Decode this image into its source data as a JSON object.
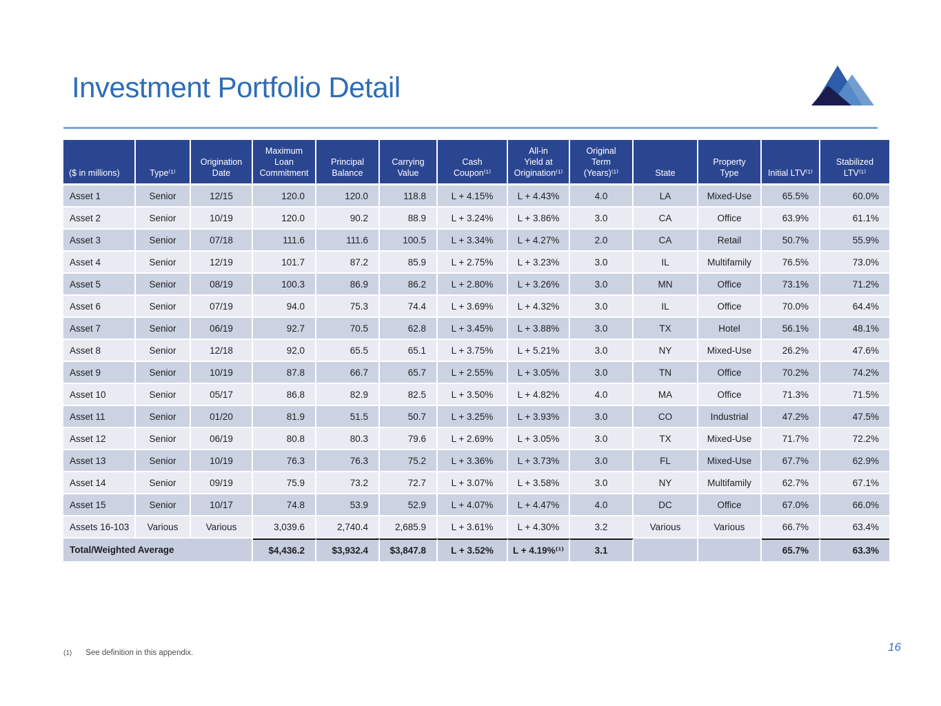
{
  "slide": {
    "title": "Investment Portfolio Detail",
    "page_number": "16",
    "footnote": {
      "marker": "(1)",
      "text": "See definition in this appendix."
    }
  },
  "colors": {
    "header_bg": "#2b4691",
    "row_odd": "#cbd2e2",
    "row_even": "#e9ebf3",
    "total_row": "#c7cedf",
    "title": "#2f6db6",
    "rule": "#7aa5d9",
    "page_number": "#3f6fc0",
    "logo_left_peak": "#2d5ca8",
    "logo_right_peak": "#5e90cb",
    "logo_dark": "#1b1c4e"
  },
  "table": {
    "headers": [
      "($ in millions)",
      "Type⁽¹⁾",
      "Origination\nDate",
      "Maximum\nLoan\nCommitment",
      "Principal\nBalance",
      "Carrying\nValue",
      "Cash\nCoupon⁽¹⁾",
      "All-in\nYield at\nOrigination⁽¹⁾",
      "Original\nTerm\n(Years)⁽¹⁾",
      "State",
      "Property\nType",
      "Initial LTV⁽¹⁾",
      "Stabilized\nLTV⁽¹⁾"
    ],
    "rows": [
      [
        "Asset 1",
        "Senior",
        "12/15",
        "120.0",
        "120.0",
        "118.8",
        "L + 4.15%",
        "L + 4.43%",
        "4.0",
        "LA",
        "Mixed-Use",
        "65.5%",
        "60.0%"
      ],
      [
        "Asset 2",
        "Senior",
        "10/19",
        "120.0",
        "90.2",
        "88.9",
        "L + 3.24%",
        "L + 3.86%",
        "3.0",
        "CA",
        "Office",
        "63.9%",
        "61.1%"
      ],
      [
        "Asset 3",
        "Senior",
        "07/18",
        "111.6",
        "111.6",
        "100.5",
        "L + 3.34%",
        "L + 4.27%",
        "2.0",
        "CA",
        "Retail",
        "50.7%",
        "55.9%"
      ],
      [
        "Asset 4",
        "Senior",
        "12/19",
        "101.7",
        "87.2",
        "85.9",
        "L + 2.75%",
        "L + 3.23%",
        "3.0",
        "IL",
        "Multifamily",
        "76.5%",
        "73.0%"
      ],
      [
        "Asset 5",
        "Senior",
        "08/19",
        "100.3",
        "86.9",
        "86.2",
        "L + 2.80%",
        "L + 3.26%",
        "3.0",
        "MN",
        "Office",
        "73.1%",
        "71.2%"
      ],
      [
        "Asset 6",
        "Senior",
        "07/19",
        "94.0",
        "75.3",
        "74.4",
        "L + 3.69%",
        "L + 4.32%",
        "3.0",
        "IL",
        "Office",
        "70.0%",
        "64.4%"
      ],
      [
        "Asset 7",
        "Senior",
        "06/19",
        "92.7",
        "70.5",
        "62.8",
        "L + 3.45%",
        "L + 3.88%",
        "3.0",
        "TX",
        "Hotel",
        "56.1%",
        "48.1%"
      ],
      [
        "Asset 8",
        "Senior",
        "12/18",
        "92.0",
        "65.5",
        "65.1",
        "L + 3.75%",
        "L + 5.21%",
        "3.0",
        "NY",
        "Mixed-Use",
        "26.2%",
        "47.6%"
      ],
      [
        "Asset 9",
        "Senior",
        "10/19",
        "87.8",
        "66.7",
        "65.7",
        "L + 2.55%",
        "L + 3.05%",
        "3.0",
        "TN",
        "Office",
        "70.2%",
        "74.2%"
      ],
      [
        "Asset 10",
        "Senior",
        "05/17",
        "86.8",
        "82.9",
        "82.5",
        "L + 3.50%",
        "L + 4.82%",
        "4.0",
        "MA",
        "Office",
        "71.3%",
        "71.5%"
      ],
      [
        "Asset 11",
        "Senior",
        "01/20",
        "81.9",
        "51.5",
        "50.7",
        "L + 3.25%",
        "L + 3.93%",
        "3.0",
        "CO",
        "Industrial",
        "47.2%",
        "47.5%"
      ],
      [
        "Asset 12",
        "Senior",
        "06/19",
        "80.8",
        "80.3",
        "79.6",
        "L + 2.69%",
        "L + 3.05%",
        "3.0",
        "TX",
        "Mixed-Use",
        "71.7%",
        "72.2%"
      ],
      [
        "Asset 13",
        "Senior",
        "10/19",
        "76.3",
        "76.3",
        "75.2",
        "L + 3.36%",
        "L + 3.73%",
        "3.0",
        "FL",
        "Mixed-Use",
        "67.7%",
        "62.9%"
      ],
      [
        "Asset 14",
        "Senior",
        "09/19",
        "75.9",
        "73.2",
        "72.7",
        "L + 3.07%",
        "L + 3.58%",
        "3.0",
        "NY",
        "Multifamily",
        "62.7%",
        "67.1%"
      ],
      [
        "Asset 15",
        "Senior",
        "10/17",
        "74.8",
        "53.9",
        "52.9",
        "L + 4.07%",
        "L + 4.47%",
        "4.0",
        "DC",
        "Office",
        "67.0%",
        "66.0%"
      ],
      [
        "Assets 16-103",
        "Various",
        "Various",
        "3,039.6",
        "2,740.4",
        "2,685.9",
        "L + 3.61%",
        "L + 4.30%",
        "3.2",
        "Various",
        "Various",
        "66.7%",
        "63.4%"
      ]
    ],
    "total_row": {
      "label": "Total/Weighted Average",
      "values": [
        "$4,436.2",
        "$3,932.4",
        "$3,847.8",
        "L + 3.52%",
        "L + 4.19%⁽¹⁾",
        "3.1",
        "",
        "",
        "65.7%",
        "63.3%"
      ]
    }
  }
}
